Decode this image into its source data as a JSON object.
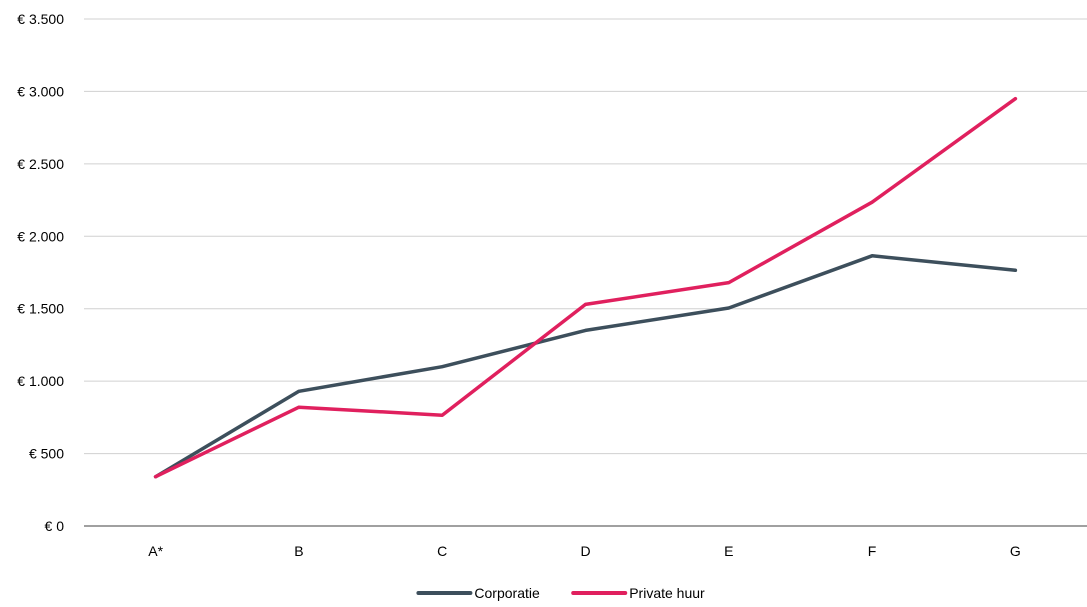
{
  "chart_data": {
    "type": "line",
    "title": "",
    "xlabel": "",
    "ylabel": "",
    "categories": [
      "A*",
      "B",
      "C",
      "D",
      "E",
      "F",
      "G"
    ],
    "ylim": [
      0,
      3500
    ],
    "yticks": [
      0,
      500,
      1000,
      1500,
      2000,
      2500,
      3000,
      3500
    ],
    "ytick_labels": [
      "€ 0",
      "€ 500",
      "€ 1.000",
      "€ 1.500",
      "€ 2.000",
      "€ 2.500",
      "€ 3.000",
      "€ 3.500"
    ],
    "grid": true,
    "legend_position": "bottom",
    "series": [
      {
        "name": "Corporatie",
        "color": "#3d4f5c",
        "values": [
          340,
          930,
          1100,
          1350,
          1505,
          1865,
          1765
        ]
      },
      {
        "name": "Private huur",
        "color": "#e0205e",
        "values": [
          340,
          820,
          765,
          1530,
          1680,
          2235,
          2950
        ]
      }
    ]
  }
}
